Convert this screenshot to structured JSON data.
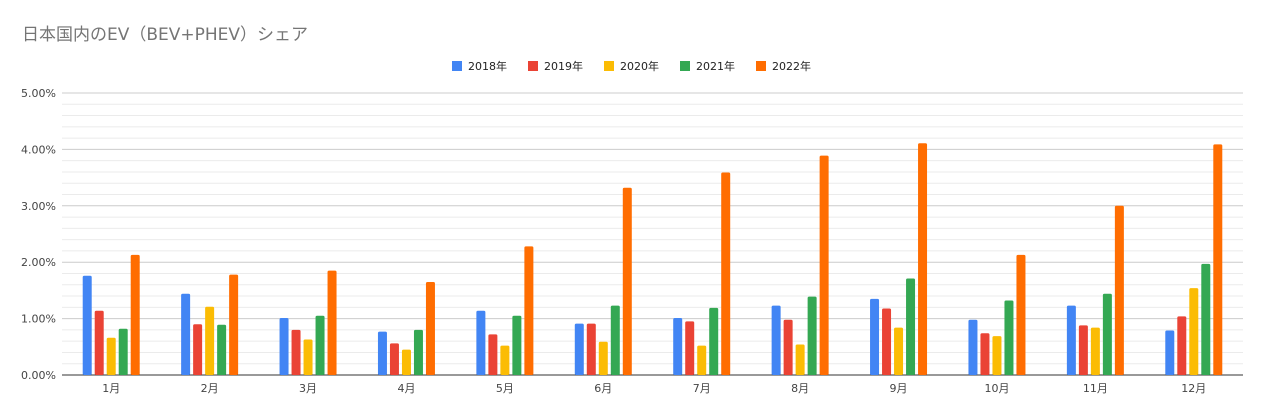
{
  "chart_data": {
    "type": "bar",
    "title": "日本国内のEV（BEV+PHEV）シェア",
    "xlabel": "",
    "ylabel": "",
    "categories": [
      "1月",
      "2月",
      "3月",
      "4月",
      "5月",
      "6月",
      "7月",
      "8月",
      "9月",
      "10月",
      "11月",
      "12月"
    ],
    "y_ticks": [
      "0.00%",
      "1.00%",
      "2.00%",
      "3.00%",
      "4.00%",
      "5.00%"
    ],
    "ylim": [
      0,
      5
    ],
    "grid": true,
    "legend_position": "top-center",
    "series": [
      {
        "name": "2018年",
        "color": "#4285f4",
        "values": [
          1.76,
          1.44,
          1.01,
          0.77,
          1.14,
          0.91,
          1.01,
          1.23,
          1.35,
          0.98,
          1.23,
          0.79
        ]
      },
      {
        "name": "2019年",
        "color": "#ea4335",
        "values": [
          1.14,
          0.9,
          0.8,
          0.56,
          0.72,
          0.91,
          0.95,
          0.98,
          1.18,
          0.74,
          0.88,
          1.04
        ]
      },
      {
        "name": "2020年",
        "color": "#fbbc04",
        "values": [
          0.66,
          1.21,
          0.63,
          0.45,
          0.52,
          0.59,
          0.52,
          0.54,
          0.84,
          0.69,
          0.84,
          1.54
        ]
      },
      {
        "name": "2021年",
        "color": "#34a853",
        "values": [
          0.82,
          0.89,
          1.05,
          0.8,
          1.05,
          1.23,
          1.19,
          1.39,
          1.71,
          1.32,
          1.44,
          1.97
        ]
      },
      {
        "name": "2022年",
        "color": "#ff6d01",
        "values": [
          2.13,
          1.78,
          1.85,
          1.65,
          2.28,
          3.32,
          3.59,
          3.89,
          4.11,
          2.13,
          3.0,
          4.09
        ]
      }
    ]
  }
}
